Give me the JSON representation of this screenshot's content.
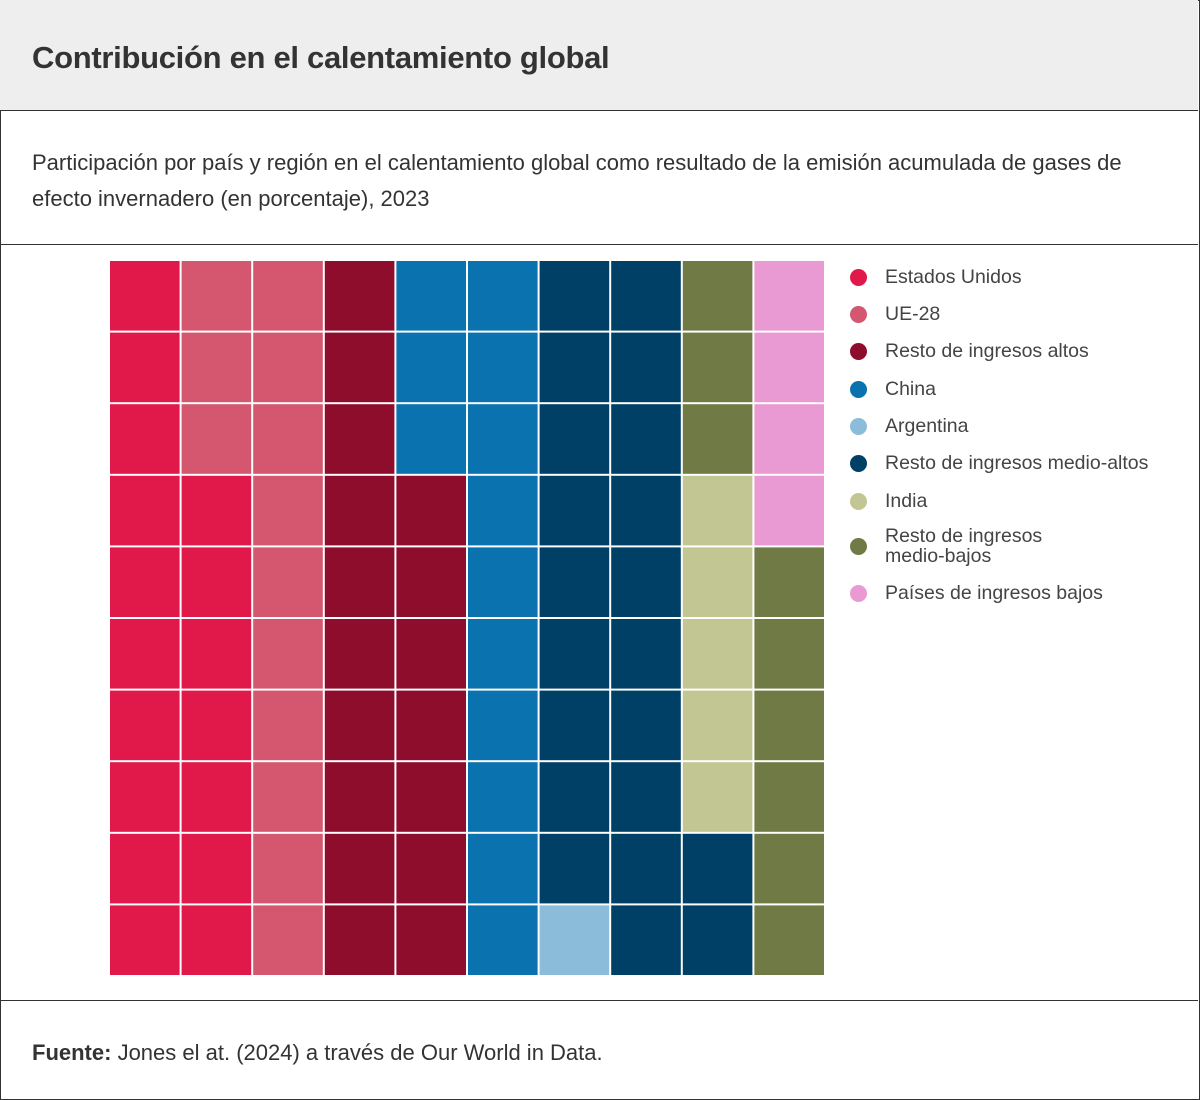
{
  "header": {
    "title": "Contribución en el calentamiento global"
  },
  "subtitle": "Participación por país y región en el calentamiento global como resultado de la emisión acumulada de gases de efecto invernadero (en porcentaje), 2023",
  "footer": {
    "label": "Fuente:",
    "text": " Jones el at. (2024) a través de Our World in Data."
  },
  "chart_data": {
    "type": "waffle",
    "grid": {
      "columns": 10,
      "rows": 10,
      "fill_order": "column-wise, bottom to top, left to right"
    },
    "legend_position": "right",
    "series": [
      {
        "name": "Estados Unidos",
        "value": 17,
        "color": "#e0194a"
      },
      {
        "name": "UE-28",
        "value": 13,
        "color": "#d4566f"
      },
      {
        "name": "Resto de ingresos altos",
        "value": 17,
        "color": "#8e0c2c"
      },
      {
        "name": "China",
        "value": 13,
        "color": "#0a72ae"
      },
      {
        "name": "Argentina",
        "value": 1,
        "color": "#8bbcd9"
      },
      {
        "name": "Resto de ingresos medio-altos",
        "value": 21,
        "color": "#003f66"
      },
      {
        "name": "India",
        "value": 5,
        "color": "#c2c693"
      },
      {
        "name": "Resto de ingresos medio-bajos",
        "value": 9,
        "color": "#707a45"
      },
      {
        "name": "Países de ingresos bajos",
        "value": 4,
        "color": "#ea9ad2"
      }
    ]
  }
}
